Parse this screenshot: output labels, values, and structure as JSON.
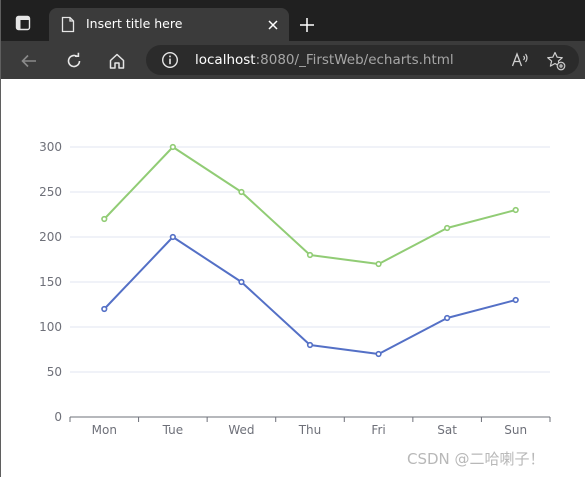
{
  "browser": {
    "tab": {
      "title": "Insert title here"
    },
    "address": {
      "host": "localhost",
      "rest": ":8080/_FirstWeb/echarts.html"
    }
  },
  "icons": {
    "tab_actions": "tab-actions-icon",
    "page": "page-icon",
    "close": "close-icon",
    "new_tab": "plus-icon",
    "back": "back-arrow-icon",
    "refresh": "refresh-icon",
    "home": "home-icon",
    "site_info": "info-icon",
    "read_aloud": "read-aloud-icon",
    "favorites": "favorites-star-icon"
  },
  "chart_data": {
    "type": "line",
    "categories": [
      "Mon",
      "Tue",
      "Wed",
      "Thu",
      "Fri",
      "Sat",
      "Sun"
    ],
    "series": [
      {
        "values": [
          120,
          200,
          150,
          80,
          70,
          110,
          130
        ],
        "color": "#5470c6"
      },
      {
        "values": [
          220,
          300,
          250,
          180,
          170,
          210,
          230
        ],
        "color": "#91cc75"
      }
    ],
    "yticks": [
      0,
      50,
      100,
      150,
      200,
      250,
      300
    ],
    "ylim": [
      0,
      300
    ],
    "grid": "horizontal",
    "legend": "none"
  },
  "watermark": "CSDN @二哈喇子！"
}
